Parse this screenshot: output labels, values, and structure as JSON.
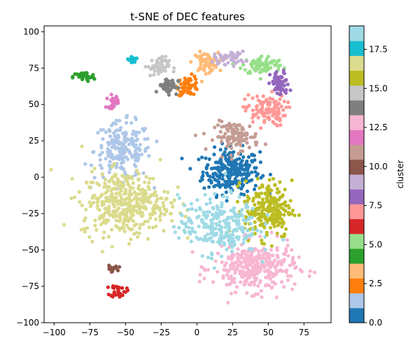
{
  "chart_data": {
    "type": "scatter",
    "title": "t-SNE of DEC features",
    "xlabel": "",
    "ylabel": "",
    "xlim": [
      -107,
      94
    ],
    "ylim": [
      -100,
      104
    ],
    "x_ticks": [
      -100,
      -75,
      -50,
      -25,
      0,
      25,
      50,
      75
    ],
    "y_ticks": [
      -100,
      -75,
      -50,
      -25,
      0,
      25,
      50,
      75,
      100
    ],
    "grid": false,
    "colorbar": {
      "label": "cluster",
      "range": [
        0,
        19
      ],
      "ticks": [
        0.0,
        2.5,
        5.0,
        7.5,
        10.0,
        12.5,
        15.0,
        17.5
      ],
      "tick_labels": [
        "0.0",
        "2.5",
        "5.0",
        "7.5",
        "10.0",
        "12.5",
        "15.0",
        "17.5"
      ],
      "colors": [
        "#1f77b4",
        "#aec7e8",
        "#ff7f0e",
        "#ffbb78",
        "#2ca02c",
        "#98df8a",
        "#d62728",
        "#ff9896",
        "#9467bd",
        "#c5b0d5",
        "#8c564b",
        "#c49c94",
        "#e377c2",
        "#f7b6d2",
        "#7f7f7f",
        "#c7c7c7",
        "#bcbd22",
        "#dbdb8d",
        "#17becf",
        "#9edae5"
      ]
    },
    "clusters": [
      {
        "cluster": 0,
        "center": [
          24,
          4
        ],
        "spread": [
          18,
          14
        ],
        "n": 260
      },
      {
        "cluster": 1,
        "center": [
          -52,
          18
        ],
        "spread": [
          18,
          18
        ],
        "n": 200
      },
      {
        "cluster": 2,
        "center": [
          -6,
          63
        ],
        "spread": [
          7,
          6
        ],
        "n": 55
      },
      {
        "cluster": 3,
        "center": [
          6,
          79
        ],
        "spread": [
          8,
          6
        ],
        "n": 60
      },
      {
        "cluster": 4,
        "center": [
          -79,
          69
        ],
        "spread": [
          7,
          3
        ],
        "n": 45
      },
      {
        "cluster": 5,
        "center": [
          46,
          77
        ],
        "spread": [
          13,
          6
        ],
        "n": 80
      },
      {
        "cluster": 6,
        "center": [
          -55,
          -78
        ],
        "spread": [
          5,
          4
        ],
        "n": 35
      },
      {
        "cluster": 7,
        "center": [
          48,
          46
        ],
        "spread": [
          13,
          10
        ],
        "n": 110
      },
      {
        "cluster": 8,
        "center": [
          58,
          64
        ],
        "spread": [
          6,
          8
        ],
        "n": 70
      },
      {
        "cluster": 9,
        "center": [
          23,
          82
        ],
        "spread": [
          10,
          4
        ],
        "n": 45
      },
      {
        "cluster": 10,
        "center": [
          -60,
          -63
        ],
        "spread": [
          4,
          2
        ],
        "n": 20
      },
      {
        "cluster": 11,
        "center": [
          28,
          28
        ],
        "spread": [
          14,
          9
        ],
        "n": 110
      },
      {
        "cluster": 12,
        "center": [
          -59,
          52
        ],
        "spread": [
          4,
          4
        ],
        "n": 22
      },
      {
        "cluster": 13,
        "center": [
          40,
          -62
        ],
        "spread": [
          26,
          15
        ],
        "n": 330
      },
      {
        "cluster": 14,
        "center": [
          -20,
          63
        ],
        "spread": [
          6,
          5
        ],
        "n": 50
      },
      {
        "cluster": 15,
        "center": [
          -27,
          76
        ],
        "spread": [
          7,
          6
        ],
        "n": 50
      },
      {
        "cluster": 16,
        "center": [
          50,
          -22
        ],
        "spread": [
          15,
          18
        ],
        "n": 220
      },
      {
        "cluster": 17,
        "center": [
          -50,
          -18
        ],
        "spread": [
          28,
          20
        ],
        "n": 400
      },
      {
        "cluster": 18,
        "center": [
          -45,
          81
        ],
        "spread": [
          3,
          3
        ],
        "n": 18
      },
      {
        "cluster": 19,
        "center": [
          15,
          -33
        ],
        "spread": [
          25,
          18
        ],
        "n": 260
      }
    ]
  }
}
